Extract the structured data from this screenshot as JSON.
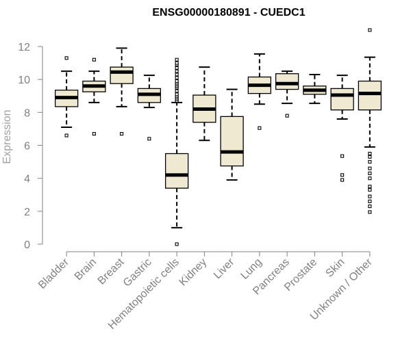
{
  "chart_data": {
    "type": "boxplot",
    "title": "ENSG00000180891 - CUEDC1",
    "ylabel": "Expression",
    "xlabel": "",
    "ylim": [
      0,
      13
    ],
    "yticks": [
      0,
      2,
      4,
      6,
      8,
      10,
      12
    ],
    "grid": false,
    "legend": "none",
    "colors": {
      "box_fill": "#efe9d2",
      "box_stroke": "#000000",
      "axis": "#808080",
      "tick_text": "#808080",
      "title": "#000000"
    },
    "categories": [
      "Bladder",
      "Brain",
      "Breast",
      "Gastric",
      "Hematopoietic cells",
      "Kidney",
      "Liver",
      "Lung",
      "Pancreas",
      "Prostate",
      "Skin",
      "Unknown / Other"
    ],
    "boxes": [
      {
        "category": "Bladder",
        "whisker_low": 7.1,
        "q1": 8.35,
        "median": 8.9,
        "q3": 9.35,
        "whisker_high": 10.5,
        "outliers": [
          6.6,
          11.3
        ]
      },
      {
        "category": "Brain",
        "whisker_low": 8.6,
        "q1": 9.25,
        "median": 9.6,
        "q3": 9.9,
        "whisker_high": 10.5,
        "outliers": [
          6.7,
          11.2
        ]
      },
      {
        "category": "Breast",
        "whisker_low": 8.35,
        "q1": 9.75,
        "median": 10.45,
        "q3": 10.75,
        "whisker_high": 11.9,
        "outliers": [
          6.7
        ]
      },
      {
        "category": "Gastric",
        "whisker_low": 8.3,
        "q1": 8.6,
        "median": 9.1,
        "q3": 9.45,
        "whisker_high": 10.25,
        "outliers": [
          6.4
        ]
      },
      {
        "category": "Hematopoietic cells",
        "whisker_low": 1.0,
        "q1": 3.4,
        "median": 4.2,
        "q3": 5.5,
        "whisker_high": 8.6,
        "outliers": [
          0.0,
          8.7,
          8.8,
          8.9,
          9.0,
          9.1,
          9.3,
          9.5,
          9.6,
          9.7,
          9.8,
          9.9,
          10.1,
          10.3,
          10.5,
          10.7,
          10.9,
          11.0,
          11.2
        ]
      },
      {
        "category": "Kidney",
        "whisker_low": 6.3,
        "q1": 7.4,
        "median": 8.2,
        "q3": 9.05,
        "whisker_high": 10.75,
        "outliers": []
      },
      {
        "category": "Liver",
        "whisker_low": 3.9,
        "q1": 4.75,
        "median": 5.6,
        "q3": 7.75,
        "whisker_high": 9.4,
        "outliers": []
      },
      {
        "category": "Lung",
        "whisker_low": 8.5,
        "q1": 9.15,
        "median": 9.65,
        "q3": 10.15,
        "whisker_high": 11.55,
        "outliers": [
          7.05
        ]
      },
      {
        "category": "Pancreas",
        "whisker_low": 8.55,
        "q1": 9.4,
        "median": 9.75,
        "q3": 10.35,
        "whisker_high": 10.5,
        "outliers": [
          7.8
        ]
      },
      {
        "category": "Prostate",
        "whisker_low": 8.55,
        "q1": 9.1,
        "median": 9.35,
        "q3": 9.6,
        "whisker_high": 10.3,
        "outliers": []
      },
      {
        "category": "Skin",
        "whisker_low": 7.6,
        "q1": 8.15,
        "median": 9.05,
        "q3": 9.45,
        "whisker_high": 10.25,
        "outliers": [
          3.9,
          4.2,
          5.35
        ]
      },
      {
        "category": "Unknown / Other",
        "whisker_low": 5.9,
        "q1": 8.15,
        "median": 9.15,
        "q3": 9.9,
        "whisker_high": 11.35,
        "outliers": [
          1.95,
          2.3,
          2.6,
          2.9,
          3.3,
          3.5,
          4.0,
          4.3,
          4.6,
          5.0,
          5.3,
          5.5,
          13.0
        ]
      }
    ]
  }
}
